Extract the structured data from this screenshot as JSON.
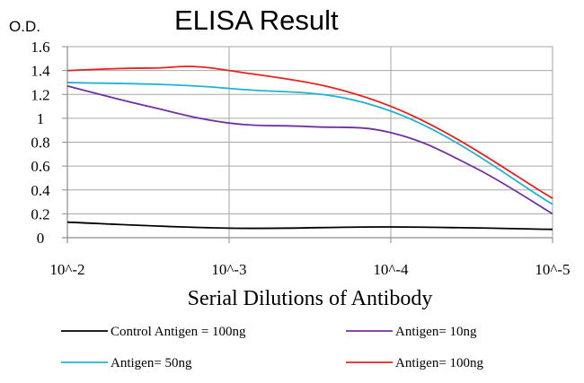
{
  "chart_data": {
    "type": "line",
    "title": "ELISA Result",
    "ylabel": "O.D.",
    "xlabel": "Serial Dilutions of Antibody",
    "categories": [
      "10^-2",
      "10^-3",
      "10^-4",
      "10^-5"
    ],
    "x_log10": [
      -2,
      -3,
      -4,
      -5
    ],
    "ylim": [
      0,
      1.6
    ],
    "yticks": [
      "0",
      "0.2",
      "0.4",
      "0.6",
      "0.8",
      "1",
      "1.2",
      "1.4",
      "1.6"
    ],
    "grid": true,
    "legend_position": "bottom",
    "series": [
      {
        "name": "Control Antigen = 100ng",
        "color": "#000000",
        "x": [
          -2,
          -3,
          -4,
          -5
        ],
        "values": [
          0.13,
          0.08,
          0.09,
          0.07
        ]
      },
      {
        "name": "Antigen= 10ng",
        "color": "#7030a0",
        "x": [
          -2,
          -2.5,
          -3,
          -3.5,
          -4,
          -4.5,
          -5
        ],
        "values": [
          1.27,
          1.1,
          0.96,
          0.93,
          0.88,
          0.6,
          0.2
        ]
      },
      {
        "name": "Antigen= 50ng",
        "color": "#1fb4d2",
        "x": [
          -2,
          -3,
          -4,
          -5
        ],
        "values": [
          1.3,
          1.25,
          1.06,
          0.28
        ]
      },
      {
        "name": "Antigen= 100ng",
        "color": "#e8231f",
        "x": [
          -2,
          -2.5,
          -3,
          -4,
          -5
        ],
        "values": [
          1.4,
          1.42,
          1.4,
          1.1,
          0.33
        ]
      }
    ]
  }
}
